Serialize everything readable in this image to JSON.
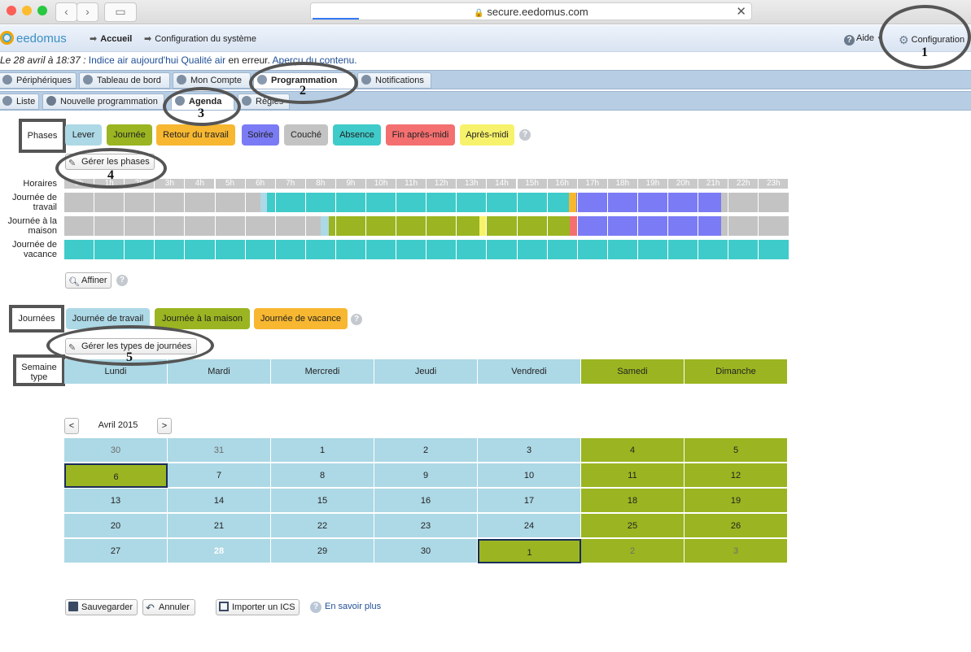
{
  "browser": {
    "url": "secure.eedomus.com"
  },
  "header": {
    "logo": "eedomus",
    "crumbs": [
      "Accueil",
      "Configuration du système"
    ],
    "aide": "Aide",
    "configuration": "Configuration"
  },
  "notice": {
    "date": "Le 28 avril à 18:37 :",
    "link1": "Indice air aujourd'hui Qualité air",
    "middle": "en erreur.",
    "link2": "Aperçu du contenu."
  },
  "tabs": [
    "Périphériques",
    "Tableau de bord",
    "Mon Compte",
    "Programmation",
    "Notifications"
  ],
  "subtabs": [
    "Liste",
    "Nouvelle programmation",
    "Agenda",
    "Règles"
  ],
  "phases": {
    "label": "Phases",
    "items": [
      {
        "name": "Lever",
        "color": "#add8e6"
      },
      {
        "name": "Journée",
        "color": "#9ab521"
      },
      {
        "name": "Retour du travail",
        "color": "#f7b731"
      },
      {
        "name": "Soirée",
        "color": "#7b7bf5"
      },
      {
        "name": "Couché",
        "color": "#c3c3c3"
      },
      {
        "name": "Absence",
        "color": "#3fcbc9"
      },
      {
        "name": "Fin après-midi",
        "color": "#f46f70"
      },
      {
        "name": "Après-midi",
        "color": "#f7f26b"
      }
    ],
    "manage_button": "Gérer les phases"
  },
  "schedule": {
    "hours_label": "Horaires",
    "hours": [
      "0h",
      "1h",
      "2h",
      "3h",
      "4h",
      "5h",
      "6h",
      "7h",
      "8h",
      "9h",
      "10h",
      "11h",
      "12h",
      "13h",
      "14h",
      "15h",
      "16h",
      "17h",
      "18h",
      "19h",
      "20h",
      "21h",
      "22h",
      "23h"
    ],
    "rows": [
      {
        "label": "Journée de travail",
        "segments": [
          [
            0,
            6.5,
            "Couché"
          ],
          [
            6.5,
            6.7,
            "Lever"
          ],
          [
            6.7,
            16.7,
            "Absence"
          ],
          [
            16.7,
            16.95,
            "Retour du travail"
          ],
          [
            16.95,
            21.75,
            "Soirée"
          ],
          [
            21.75,
            24,
            "Couché"
          ]
        ]
      },
      {
        "label": "Journée à la maison",
        "segments": [
          [
            0,
            8.5,
            "Couché"
          ],
          [
            8.5,
            8.75,
            "Lever"
          ],
          [
            8.75,
            13.75,
            "Journée"
          ],
          [
            13.75,
            14,
            "Après-midi"
          ],
          [
            14,
            16.75,
            "Journée"
          ],
          [
            16.75,
            17,
            "Fin après-midi"
          ],
          [
            17,
            21.75,
            "Soirée"
          ],
          [
            21.75,
            24,
            "Couché"
          ]
        ]
      },
      {
        "label": "Journée de vacance",
        "segments": [
          [
            0,
            24,
            "Absence"
          ]
        ]
      }
    ],
    "refine_button": "Affiner"
  },
  "journees": {
    "label": "Journées",
    "items": [
      {
        "name": "Journée de travail",
        "color": "#add8e6"
      },
      {
        "name": "Journée à la maison",
        "color": "#9ab521"
      },
      {
        "name": "Journée de vacance",
        "color": "#f7b731"
      }
    ],
    "manage_button": "Gérer les types de journées"
  },
  "week": {
    "label": "Semaine type",
    "days": [
      {
        "name": "Lundi",
        "type": "Journée de travail"
      },
      {
        "name": "Mardi",
        "type": "Journée de travail"
      },
      {
        "name": "Mercredi",
        "type": "Journée de travail"
      },
      {
        "name": "Jeudi",
        "type": "Journée de travail"
      },
      {
        "name": "Vendredi",
        "type": "Journée de travail"
      },
      {
        "name": "Samedi",
        "type": "Journée à la maison"
      },
      {
        "name": "Dimanche",
        "type": "Journée à la maison"
      }
    ]
  },
  "calendar": {
    "month": "Avril 2015",
    "prev": "<",
    "next": ">",
    "weeks": [
      [
        {
          "d": "30",
          "o": true
        },
        {
          "d": "31",
          "o": true
        },
        {
          "d": "1"
        },
        {
          "d": "2"
        },
        {
          "d": "3"
        },
        {
          "d": "4",
          "m": true
        },
        {
          "d": "5",
          "m": true
        }
      ],
      [
        {
          "d": "6",
          "m": true,
          "s": true
        },
        {
          "d": "7"
        },
        {
          "d": "8"
        },
        {
          "d": "9"
        },
        {
          "d": "10"
        },
        {
          "d": "11",
          "m": true
        },
        {
          "d": "12",
          "m": true
        }
      ],
      [
        {
          "d": "13"
        },
        {
          "d": "14"
        },
        {
          "d": "15"
        },
        {
          "d": "16"
        },
        {
          "d": "17"
        },
        {
          "d": "18",
          "m": true
        },
        {
          "d": "19",
          "m": true
        }
      ],
      [
        {
          "d": "20"
        },
        {
          "d": "21"
        },
        {
          "d": "22"
        },
        {
          "d": "23"
        },
        {
          "d": "24"
        },
        {
          "d": "25",
          "m": true
        },
        {
          "d": "26",
          "m": true
        }
      ],
      [
        {
          "d": "27"
        },
        {
          "d": "28",
          "t": true
        },
        {
          "d": "29"
        },
        {
          "d": "30"
        },
        {
          "d": "1",
          "m": true,
          "s": true
        },
        {
          "d": "2",
          "m": true,
          "o": true
        },
        {
          "d": "3",
          "m": true,
          "o": true
        }
      ]
    ]
  },
  "footer": {
    "save": "Sauvegarder",
    "cancel": "Annuler",
    "import": "Importer un ICS",
    "learn": "En savoir plus"
  },
  "annotations": [
    "1",
    "2",
    "3",
    "4",
    "5"
  ]
}
